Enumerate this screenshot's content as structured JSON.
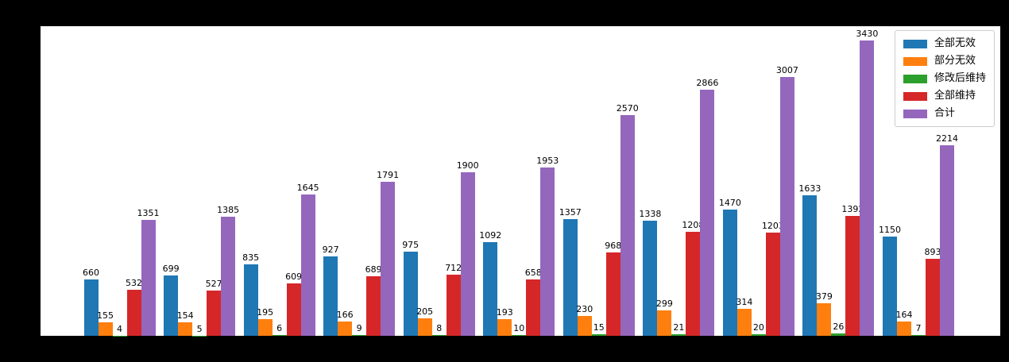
{
  "figure": {
    "background_color": "#000000",
    "plot_background_color": "#ffffff",
    "spine_color": "#000000",
    "value_label_color": "#000000"
  },
  "chart_data": {
    "type": "bar",
    "title": "",
    "xlabel": "",
    "ylabel": "",
    "categories": [
      "",
      "",
      "",
      "",
      "",
      "",
      "",
      "",
      "",
      "",
      ""
    ],
    "x_tick_labels_visible": false,
    "y_tick_labels_visible": false,
    "grid": false,
    "bar_value_labels": true,
    "legend_position": "upper right",
    "ylim": [
      0,
      3600
    ],
    "series": [
      {
        "name": "全部无效",
        "color": "#1f77b4",
        "values": [
          660,
          699,
          835,
          927,
          975,
          1092,
          1357,
          1338,
          1470,
          1633,
          1150
        ]
      },
      {
        "name": "部分无效",
        "color": "#ff7f0e",
        "values": [
          155,
          154,
          195,
          166,
          205,
          193,
          230,
          299,
          314,
          379,
          164
        ]
      },
      {
        "name": "修改后维持",
        "color": "#2ca02c",
        "values": [
          4,
          5,
          6,
          9,
          8,
          10,
          15,
          21,
          20,
          26,
          7
        ]
      },
      {
        "name": "全部维持",
        "color": "#d62728",
        "values": [
          532,
          527,
          609,
          689,
          712,
          658,
          968,
          1208,
          1203,
          1392,
          893
        ]
      },
      {
        "name": "合计",
        "color": "#9467bd",
        "values": [
          1351,
          1385,
          1645,
          1791,
          1900,
          1953,
          2570,
          2866,
          3007,
          3430,
          2214
        ]
      }
    ]
  }
}
